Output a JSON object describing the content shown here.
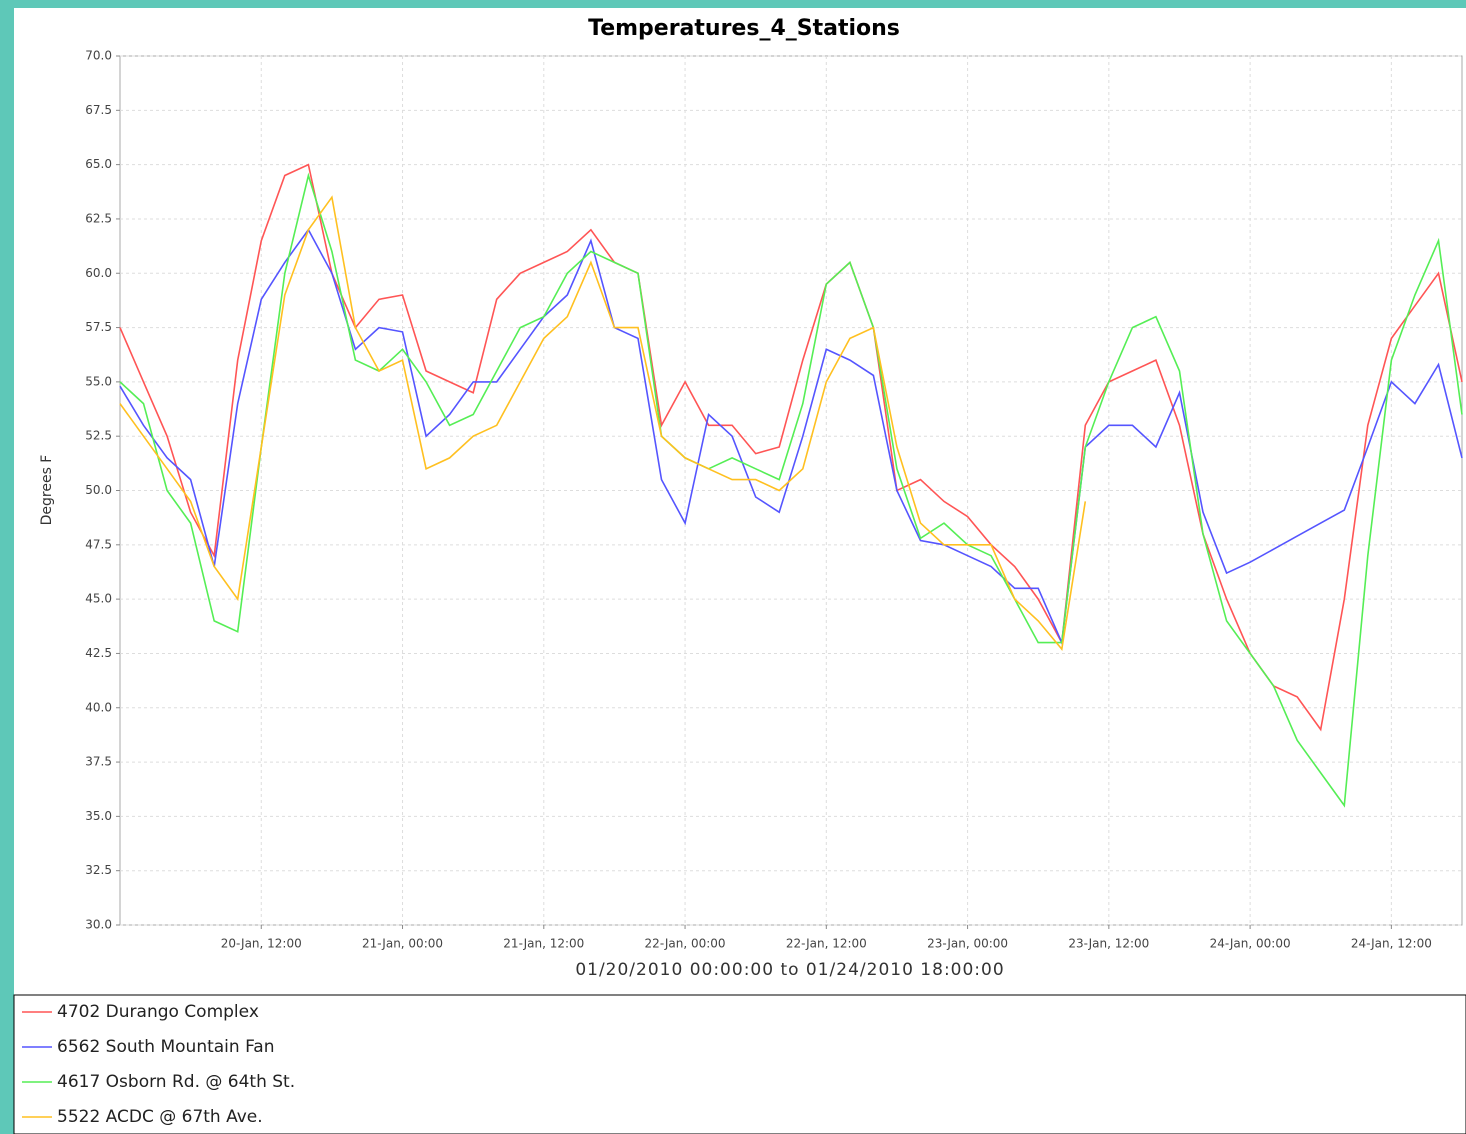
{
  "chart_data": {
    "type": "line",
    "title": "Temperatures_4_Stations",
    "xlabel": "01/20/2010 00:00:00 to 01/24/2010 18:00:00",
    "ylabel": "Degrees F",
    "x": [
      "20-Jan, 00:00",
      "20-Jan, 02:00",
      "20-Jan, 04:00",
      "20-Jan, 06:00",
      "20-Jan, 08:00",
      "20-Jan, 10:00",
      "20-Jan, 12:00",
      "20-Jan, 14:00",
      "20-Jan, 16:00",
      "20-Jan, 18:00",
      "20-Jan, 20:00",
      "20-Jan, 22:00",
      "21-Jan, 00:00",
      "21-Jan, 02:00",
      "21-Jan, 04:00",
      "21-Jan, 06:00",
      "21-Jan, 08:00",
      "21-Jan, 10:00",
      "21-Jan, 12:00",
      "21-Jan, 14:00",
      "21-Jan, 16:00",
      "21-Jan, 18:00",
      "21-Jan, 20:00",
      "21-Jan, 22:00",
      "22-Jan, 00:00",
      "22-Jan, 02:00",
      "22-Jan, 04:00",
      "22-Jan, 06:00",
      "22-Jan, 08:00",
      "22-Jan, 10:00",
      "22-Jan, 12:00",
      "22-Jan, 14:00",
      "22-Jan, 16:00",
      "22-Jan, 18:00",
      "22-Jan, 20:00",
      "22-Jan, 22:00",
      "23-Jan, 00:00",
      "23-Jan, 02:00",
      "23-Jan, 04:00",
      "23-Jan, 06:00",
      "23-Jan, 08:00",
      "23-Jan, 10:00",
      "23-Jan, 12:00",
      "23-Jan, 14:00",
      "23-Jan, 16:00",
      "23-Jan, 18:00",
      "23-Jan, 20:00",
      "23-Jan, 22:00",
      "24-Jan, 00:00",
      "24-Jan, 02:00",
      "24-Jan, 04:00",
      "24-Jan, 06:00",
      "24-Jan, 08:00",
      "24-Jan, 10:00",
      "24-Jan, 12:00",
      "24-Jan, 14:00",
      "24-Jan, 16:00",
      "24-Jan, 18:00"
    ],
    "series": [
      {
        "name": "4702 Durango Complex",
        "color": "#ff5555",
        "values": [
          57.5,
          55,
          52.5,
          49,
          47,
          56,
          61.5,
          64.5,
          65,
          60,
          57.5,
          58.8,
          59,
          55.5,
          55,
          54.5,
          58.8,
          60,
          60.5,
          61,
          62,
          60.5,
          60,
          53,
          55,
          53,
          53,
          51.7,
          52,
          56,
          59.5,
          60.5,
          57.5,
          50,
          50.5,
          49.5,
          48.8,
          47.5,
          46.5,
          45,
          43,
          53,
          55,
          55.5,
          56,
          53,
          48,
          45,
          42.5,
          41,
          40.5,
          39,
          45,
          53,
          57,
          58.5,
          60,
          55
        ]
      },
      {
        "name": "6562 South Mountain Fan",
        "color": "#5555ff",
        "values": [
          54.8,
          53,
          51.5,
          50.5,
          46.5,
          54,
          58.8,
          60.5,
          62,
          60,
          56.5,
          57.5,
          57.3,
          52.5,
          53.5,
          55,
          55,
          56.5,
          58,
          59,
          61.5,
          57.5,
          57,
          50.5,
          48.5,
          53.5,
          52.5,
          49.7,
          49,
          52.5,
          56.5,
          56,
          55.3,
          50,
          47.7,
          47.5,
          47,
          46.5,
          45.5,
          45.5,
          43,
          52,
          53,
          53,
          52,
          54.5,
          49,
          46.2,
          46.7,
          47.3,
          47.9,
          48.5,
          49.1,
          52,
          55,
          54,
          55.8,
          51.5
        ]
      },
      {
        "name": "4617 Osborn Rd. @ 64th St.",
        "color": "#55ee55",
        "values": [
          55,
          54,
          50,
          48.5,
          44,
          43.5,
          52,
          60,
          64.5,
          61,
          56,
          55.5,
          56.5,
          55,
          53,
          53.5,
          55.5,
          57.5,
          58,
          60,
          61,
          60.5,
          60,
          52.5,
          51.5,
          51,
          51.5,
          51,
          50.5,
          54,
          59.5,
          60.5,
          57.5,
          51,
          47.8,
          48.5,
          47.5,
          47,
          45,
          43,
          43,
          52,
          55,
          57.5,
          58,
          55.5,
          48,
          44,
          42.5,
          41,
          38.5,
          37,
          35.5,
          47,
          56,
          59,
          61.5,
          53.5
        ]
      },
      {
        "name": "5522 ACDC @ 67th Ave.",
        "color": "#ffc020",
        "values": [
          54,
          52.5,
          51,
          49.5,
          46.5,
          45,
          52,
          59,
          62,
          63.5,
          57.5,
          55.5,
          56,
          51,
          51.5,
          52.5,
          53,
          55,
          57,
          58,
          60.5,
          57.5,
          57.5,
          52.5,
          51.5,
          51,
          50.5,
          50.5,
          50,
          51,
          55,
          57,
          57.5,
          52,
          48.5,
          47.5,
          47.5,
          47.5,
          45,
          44,
          42.7,
          49.5,
          null,
          null,
          null,
          null,
          null,
          null,
          null,
          null,
          null,
          null,
          null,
          null,
          null,
          null,
          null,
          null
        ]
      }
    ],
    "xlim": [
      "20-Jan, 00:00",
      "24-Jan, 18:00"
    ],
    "xticks": [
      "20-Jan, 12:00",
      "21-Jan, 00:00",
      "21-Jan, 12:00",
      "22-Jan, 00:00",
      "22-Jan, 12:00",
      "23-Jan, 00:00",
      "23-Jan, 12:00",
      "24-Jan, 00:00",
      "24-Jan, 12:00"
    ],
    "ylim": [
      30,
      70
    ],
    "yticks": [
      {
        "value": 30,
        "label": "30.0"
      },
      {
        "value": 32.5,
        "label": "32.5"
      },
      {
        "value": 35,
        "label": "35.0"
      },
      {
        "value": 37.5,
        "label": "37.5"
      },
      {
        "value": 40,
        "label": "40.0"
      },
      {
        "value": 42.5,
        "label": "42.5"
      },
      {
        "value": 45,
        "label": "45.0"
      },
      {
        "value": 47.5,
        "label": "47.5"
      },
      {
        "value": 50,
        "label": "50.0"
      },
      {
        "value": 52.5,
        "label": "52.5"
      },
      {
        "value": 55,
        "label": "55.0"
      },
      {
        "value": 57.5,
        "label": "57.5"
      },
      {
        "value": 60,
        "label": "60.0"
      },
      {
        "value": 62.5,
        "label": "62.5"
      },
      {
        "value": 65,
        "label": "65.0"
      },
      {
        "value": 67.5,
        "label": "67.5"
      },
      {
        "value": 70,
        "label": "70.0"
      }
    ],
    "grid": true,
    "legend": "bottom"
  }
}
